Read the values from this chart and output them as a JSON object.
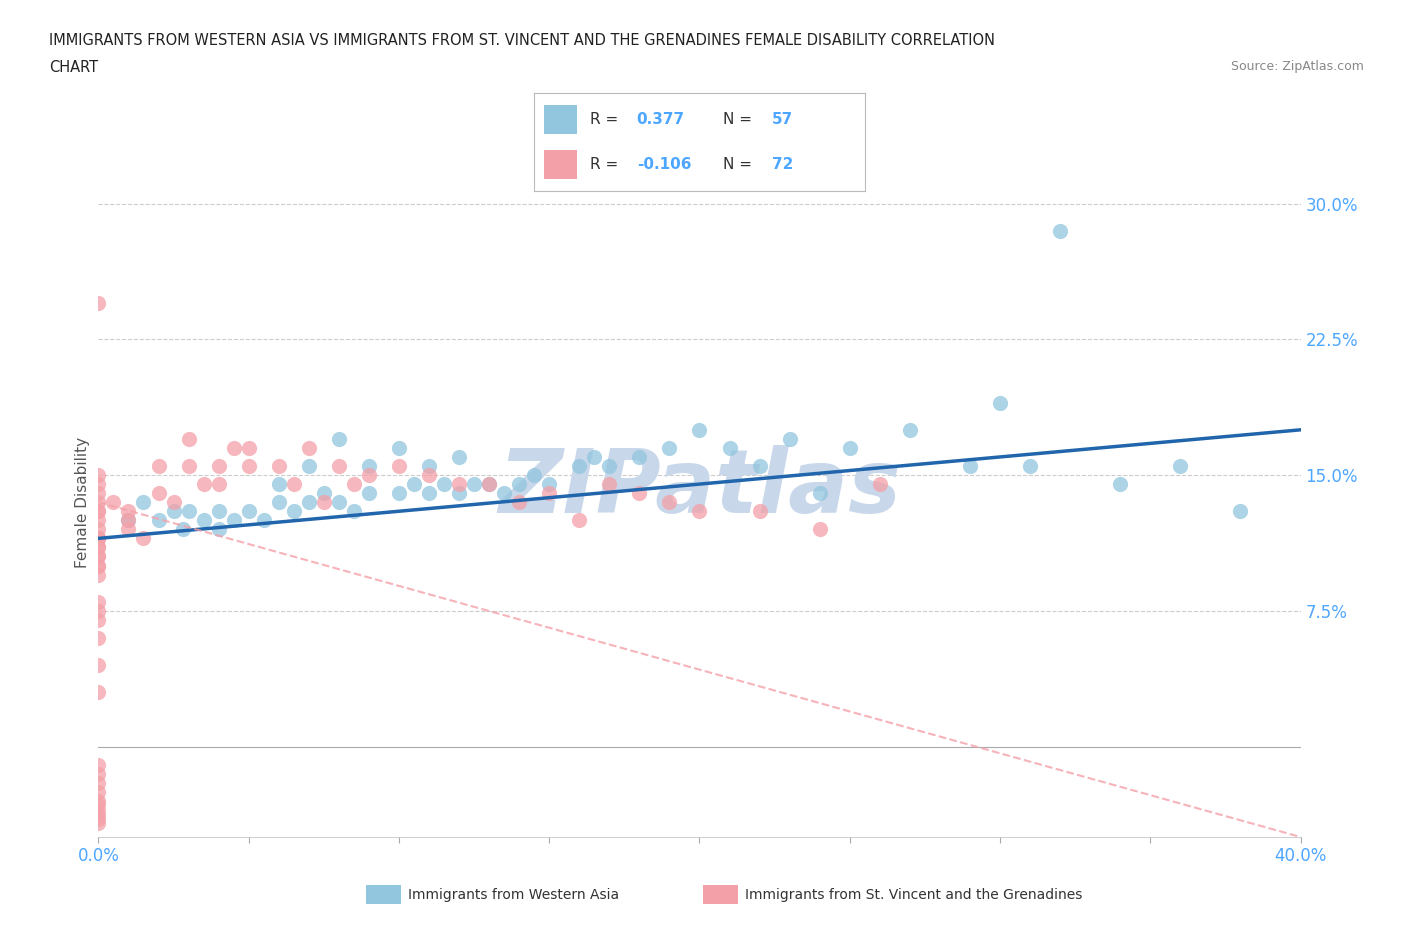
{
  "title_line1": "IMMIGRANTS FROM WESTERN ASIA VS IMMIGRANTS FROM ST. VINCENT AND THE GRENADINES FEMALE DISABILITY CORRELATION",
  "title_line2": "CHART",
  "source_text": "Source: ZipAtlas.com",
  "ylabel": "Female Disability",
  "xlim": [
    0.0,
    0.4
  ],
  "ylim": [
    -0.05,
    0.32
  ],
  "yticks_right": [
    0.075,
    0.15,
    0.225,
    0.3
  ],
  "ytick_labels_right": [
    "7.5%",
    "15.0%",
    "22.5%",
    "30.0%"
  ],
  "blue_color": "#92c5de",
  "pink_color": "#f4a0a8",
  "blue_line_color": "#2166ac",
  "pink_line_color": "#f4a0a8",
  "watermark_color": "#c8d8ea",
  "watermark_text": "ZIPatlas",
  "legend_label_1": "Immigrants from Western Asia",
  "legend_label_2": "Immigrants from St. Vincent and the Grenadines",
  "blue_scatter_x": [
    0.01,
    0.015,
    0.02,
    0.025,
    0.028,
    0.03,
    0.035,
    0.04,
    0.04,
    0.045,
    0.05,
    0.055,
    0.06,
    0.065,
    0.07,
    0.075,
    0.08,
    0.085,
    0.09,
    0.1,
    0.105,
    0.11,
    0.115,
    0.12,
    0.125,
    0.13,
    0.135,
    0.14,
    0.145,
    0.15,
    0.16,
    0.165,
    0.17,
    0.18,
    0.19,
    0.2,
    0.21,
    0.22,
    0.23,
    0.24,
    0.25,
    0.27,
    0.29,
    0.3,
    0.31,
    0.32,
    0.34,
    0.36,
    0.38,
    0.06,
    0.07,
    0.08,
    0.09,
    0.1,
    0.11,
    0.12
  ],
  "blue_scatter_y": [
    0.125,
    0.135,
    0.125,
    0.13,
    0.12,
    0.13,
    0.125,
    0.12,
    0.13,
    0.125,
    0.13,
    0.125,
    0.135,
    0.13,
    0.135,
    0.14,
    0.135,
    0.13,
    0.14,
    0.14,
    0.145,
    0.14,
    0.145,
    0.14,
    0.145,
    0.145,
    0.14,
    0.145,
    0.15,
    0.145,
    0.155,
    0.16,
    0.155,
    0.16,
    0.165,
    0.175,
    0.165,
    0.155,
    0.17,
    0.14,
    0.165,
    0.175,
    0.155,
    0.19,
    0.155,
    0.285,
    0.145,
    0.155,
    0.13,
    0.145,
    0.155,
    0.17,
    0.155,
    0.165,
    0.155,
    0.16
  ],
  "pink_scatter_x": [
    0.0,
    0.0,
    0.0,
    0.0,
    0.0,
    0.0,
    0.0,
    0.0,
    0.0,
    0.0,
    0.0,
    0.0,
    0.0,
    0.0,
    0.0,
    0.0,
    0.0,
    0.0,
    0.0,
    0.0,
    0.0,
    0.0,
    0.0,
    0.0,
    0.0,
    0.005,
    0.01,
    0.01,
    0.01,
    0.015,
    0.02,
    0.02,
    0.025,
    0.03,
    0.03,
    0.035,
    0.04,
    0.04,
    0.045,
    0.05,
    0.05,
    0.06,
    0.065,
    0.07,
    0.075,
    0.08,
    0.085,
    0.09,
    0.1,
    0.11,
    0.12,
    0.13,
    0.14,
    0.15,
    0.16,
    0.17,
    0.18,
    0.19,
    0.2,
    0.22,
    0.24,
    0.26,
    0.0,
    0.0,
    0.0,
    0.0,
    0.0,
    0.0,
    0.0,
    0.0,
    0.0,
    0.0
  ],
  "pink_scatter_y": [
    0.14,
    0.15,
    0.145,
    0.135,
    0.13,
    0.13,
    0.125,
    0.12,
    0.115,
    0.115,
    0.115,
    0.11,
    0.11,
    0.105,
    0.105,
    0.1,
    0.1,
    0.095,
    0.08,
    0.075,
    0.07,
    0.06,
    0.045,
    0.03,
    0.245,
    0.135,
    0.13,
    0.125,
    0.12,
    0.115,
    0.155,
    0.14,
    0.135,
    0.17,
    0.155,
    0.145,
    0.155,
    0.145,
    0.165,
    0.165,
    0.155,
    0.155,
    0.145,
    0.165,
    0.135,
    0.155,
    0.145,
    0.15,
    0.155,
    0.15,
    0.145,
    0.145,
    0.135,
    0.14,
    0.125,
    0.145,
    0.14,
    0.135,
    0.13,
    0.13,
    0.12,
    0.145,
    -0.01,
    -0.015,
    -0.02,
    -0.025,
    -0.03,
    -0.032,
    -0.035,
    -0.038,
    -0.04,
    -0.042
  ],
  "blue_trend_x": [
    0.0,
    0.4
  ],
  "blue_trend_y": [
    0.115,
    0.175
  ],
  "pink_trend_x": [
    0.0,
    0.4
  ],
  "pink_trend_y": [
    0.135,
    -0.05
  ],
  "background_color": "#ffffff",
  "grid_color": "#cccccc",
  "title_color": "#222222",
  "axis_color": "#555555",
  "tick_color": "#4da6ff"
}
